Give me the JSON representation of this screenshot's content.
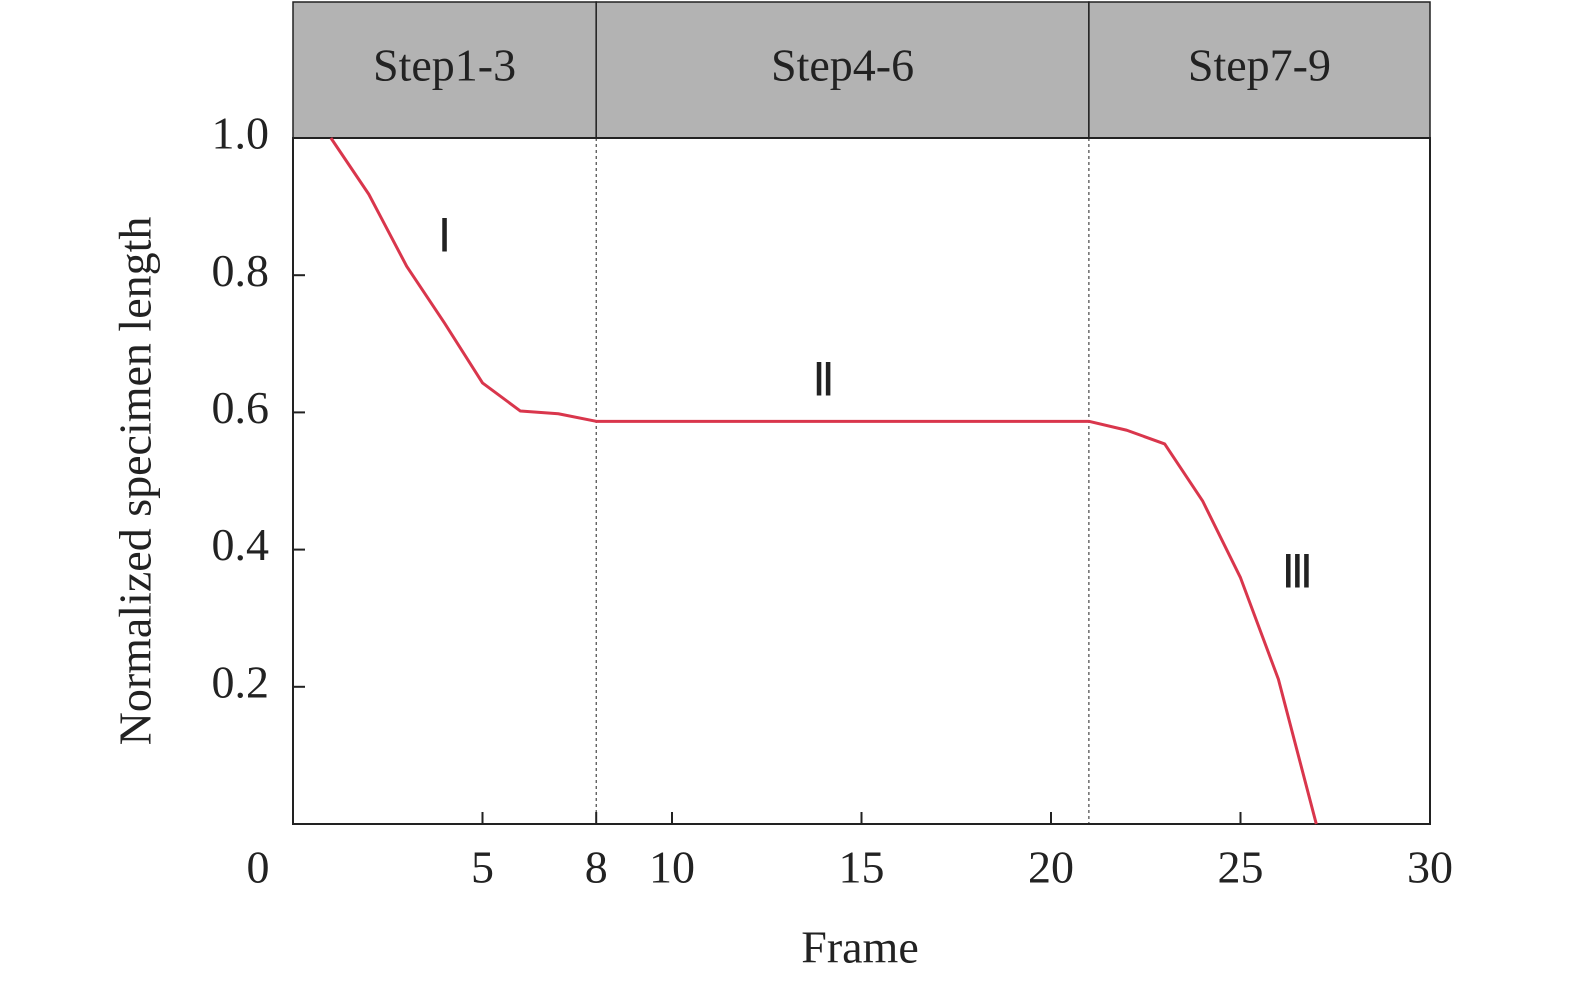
{
  "chart_data": {
    "type": "line",
    "x_label": "Frame",
    "y_label": "Normalized specimen length",
    "x": [
      1,
      2,
      3,
      4,
      5,
      6,
      7,
      8,
      9,
      10,
      11,
      12,
      13,
      14,
      15,
      16,
      17,
      18,
      19,
      20,
      21,
      22,
      23,
      24,
      25,
      26,
      27
    ],
    "series": [
      {
        "color": "#d9364c",
        "values": [
          1.0,
          0.918,
          0.813,
          0.73,
          0.643,
          0.602,
          0.598,
          0.587,
          0.587,
          0.587,
          0.587,
          0.587,
          0.587,
          0.587,
          0.587,
          0.587,
          0.587,
          0.587,
          0.587,
          0.587,
          0.587,
          0.574,
          0.554,
          0.471,
          0.359,
          0.211,
          0.0
        ]
      }
    ],
    "xlim": [
      0,
      30
    ],
    "ylim": [
      0,
      1
    ],
    "xticks": [
      0,
      5,
      8,
      10,
      15,
      20,
      25,
      30
    ],
    "yticks": [
      0.2,
      0.4,
      0.6,
      {
        "value": 0.8,
        "label": "0.8"
      },
      {
        "value": 1,
        "label": "1.0"
      }
    ],
    "stages": [
      {
        "label": "Step1-3",
        "start": 0,
        "end": 8
      },
      {
        "label": "Step4-6",
        "start": 8,
        "end": 21
      },
      {
        "label": "Step7-9",
        "start": 21,
        "end": 30
      }
    ],
    "annotations": [
      {
        "text": "Ⅰ",
        "x": 4,
        "y": 0.85
      },
      {
        "text": "Ⅱ",
        "x": 14,
        "y": 0.64
      },
      {
        "text": "Ⅲ",
        "x": 26.5,
        "y": 0.36
      }
    ]
  }
}
